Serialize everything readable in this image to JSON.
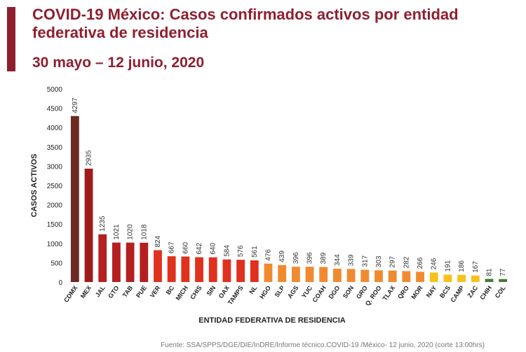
{
  "chart_data": {
    "type": "bar",
    "title": "COVID-19 México: Casos confirmados activos por entidad federativa de residencia",
    "subtitle": "30 mayo – 12 junio, 2020",
    "y_label": "CASOS ACTIVOS",
    "x_label": "ENTIDAD FEDERATIVA DE RESIDENCIA",
    "source": "Fuente: SSA/SPPS/DGE/DIE/InDRE/Informe técnico.COVID-19 /México- 12 junio, 2020 (corte 13:00hrs)",
    "categories": [
      "CDMX",
      "MEX",
      "JAL",
      "GTO",
      "TAB",
      "PUE",
      "VER",
      "BC",
      "MICH",
      "CHIS",
      "SIN",
      "OAX",
      "TAMPS",
      "NL",
      "HGO",
      "SLP",
      "AGS",
      "YUC",
      "COAH",
      "DGO",
      "SON",
      "GRO",
      "Q. ROO",
      "TLAX",
      "QRO",
      "MOR",
      "NAY",
      "BCS",
      "CAMP",
      "ZAC",
      "CHIH",
      "COL"
    ],
    "values": [
      4297,
      2935,
      1235,
      1021,
      1020,
      1018,
      824,
      667,
      660,
      642,
      640,
      584,
      576,
      561,
      476,
      439,
      396,
      396,
      389,
      344,
      339,
      317,
      303,
      297,
      282,
      266,
      246,
      191,
      186,
      167,
      81,
      77
    ],
    "colors": [
      "#6b2a22",
      "#9e1b1b",
      "#b51f1f",
      "#b51f1f",
      "#b51f1f",
      "#b51f1f",
      "#e0301e",
      "#e0301e",
      "#e0301e",
      "#e0301e",
      "#e0301e",
      "#e0301e",
      "#e0301e",
      "#e0301e",
      "#f08a30",
      "#f08a30",
      "#f08a30",
      "#f08a30",
      "#f08a30",
      "#f08a30",
      "#f08a30",
      "#f08a30",
      "#f08a30",
      "#f08a30",
      "#f08a30",
      "#f08a30",
      "#f5c21b",
      "#f5c21b",
      "#f5c21b",
      "#f5c21b",
      "#4a7a3a",
      "#4a7a3a"
    ],
    "ylim": [
      0,
      5000
    ],
    "yticks": [
      0,
      500,
      1000,
      1500,
      2000,
      2500,
      3000,
      3500,
      4000,
      4500,
      5000
    ],
    "grid": false
  }
}
